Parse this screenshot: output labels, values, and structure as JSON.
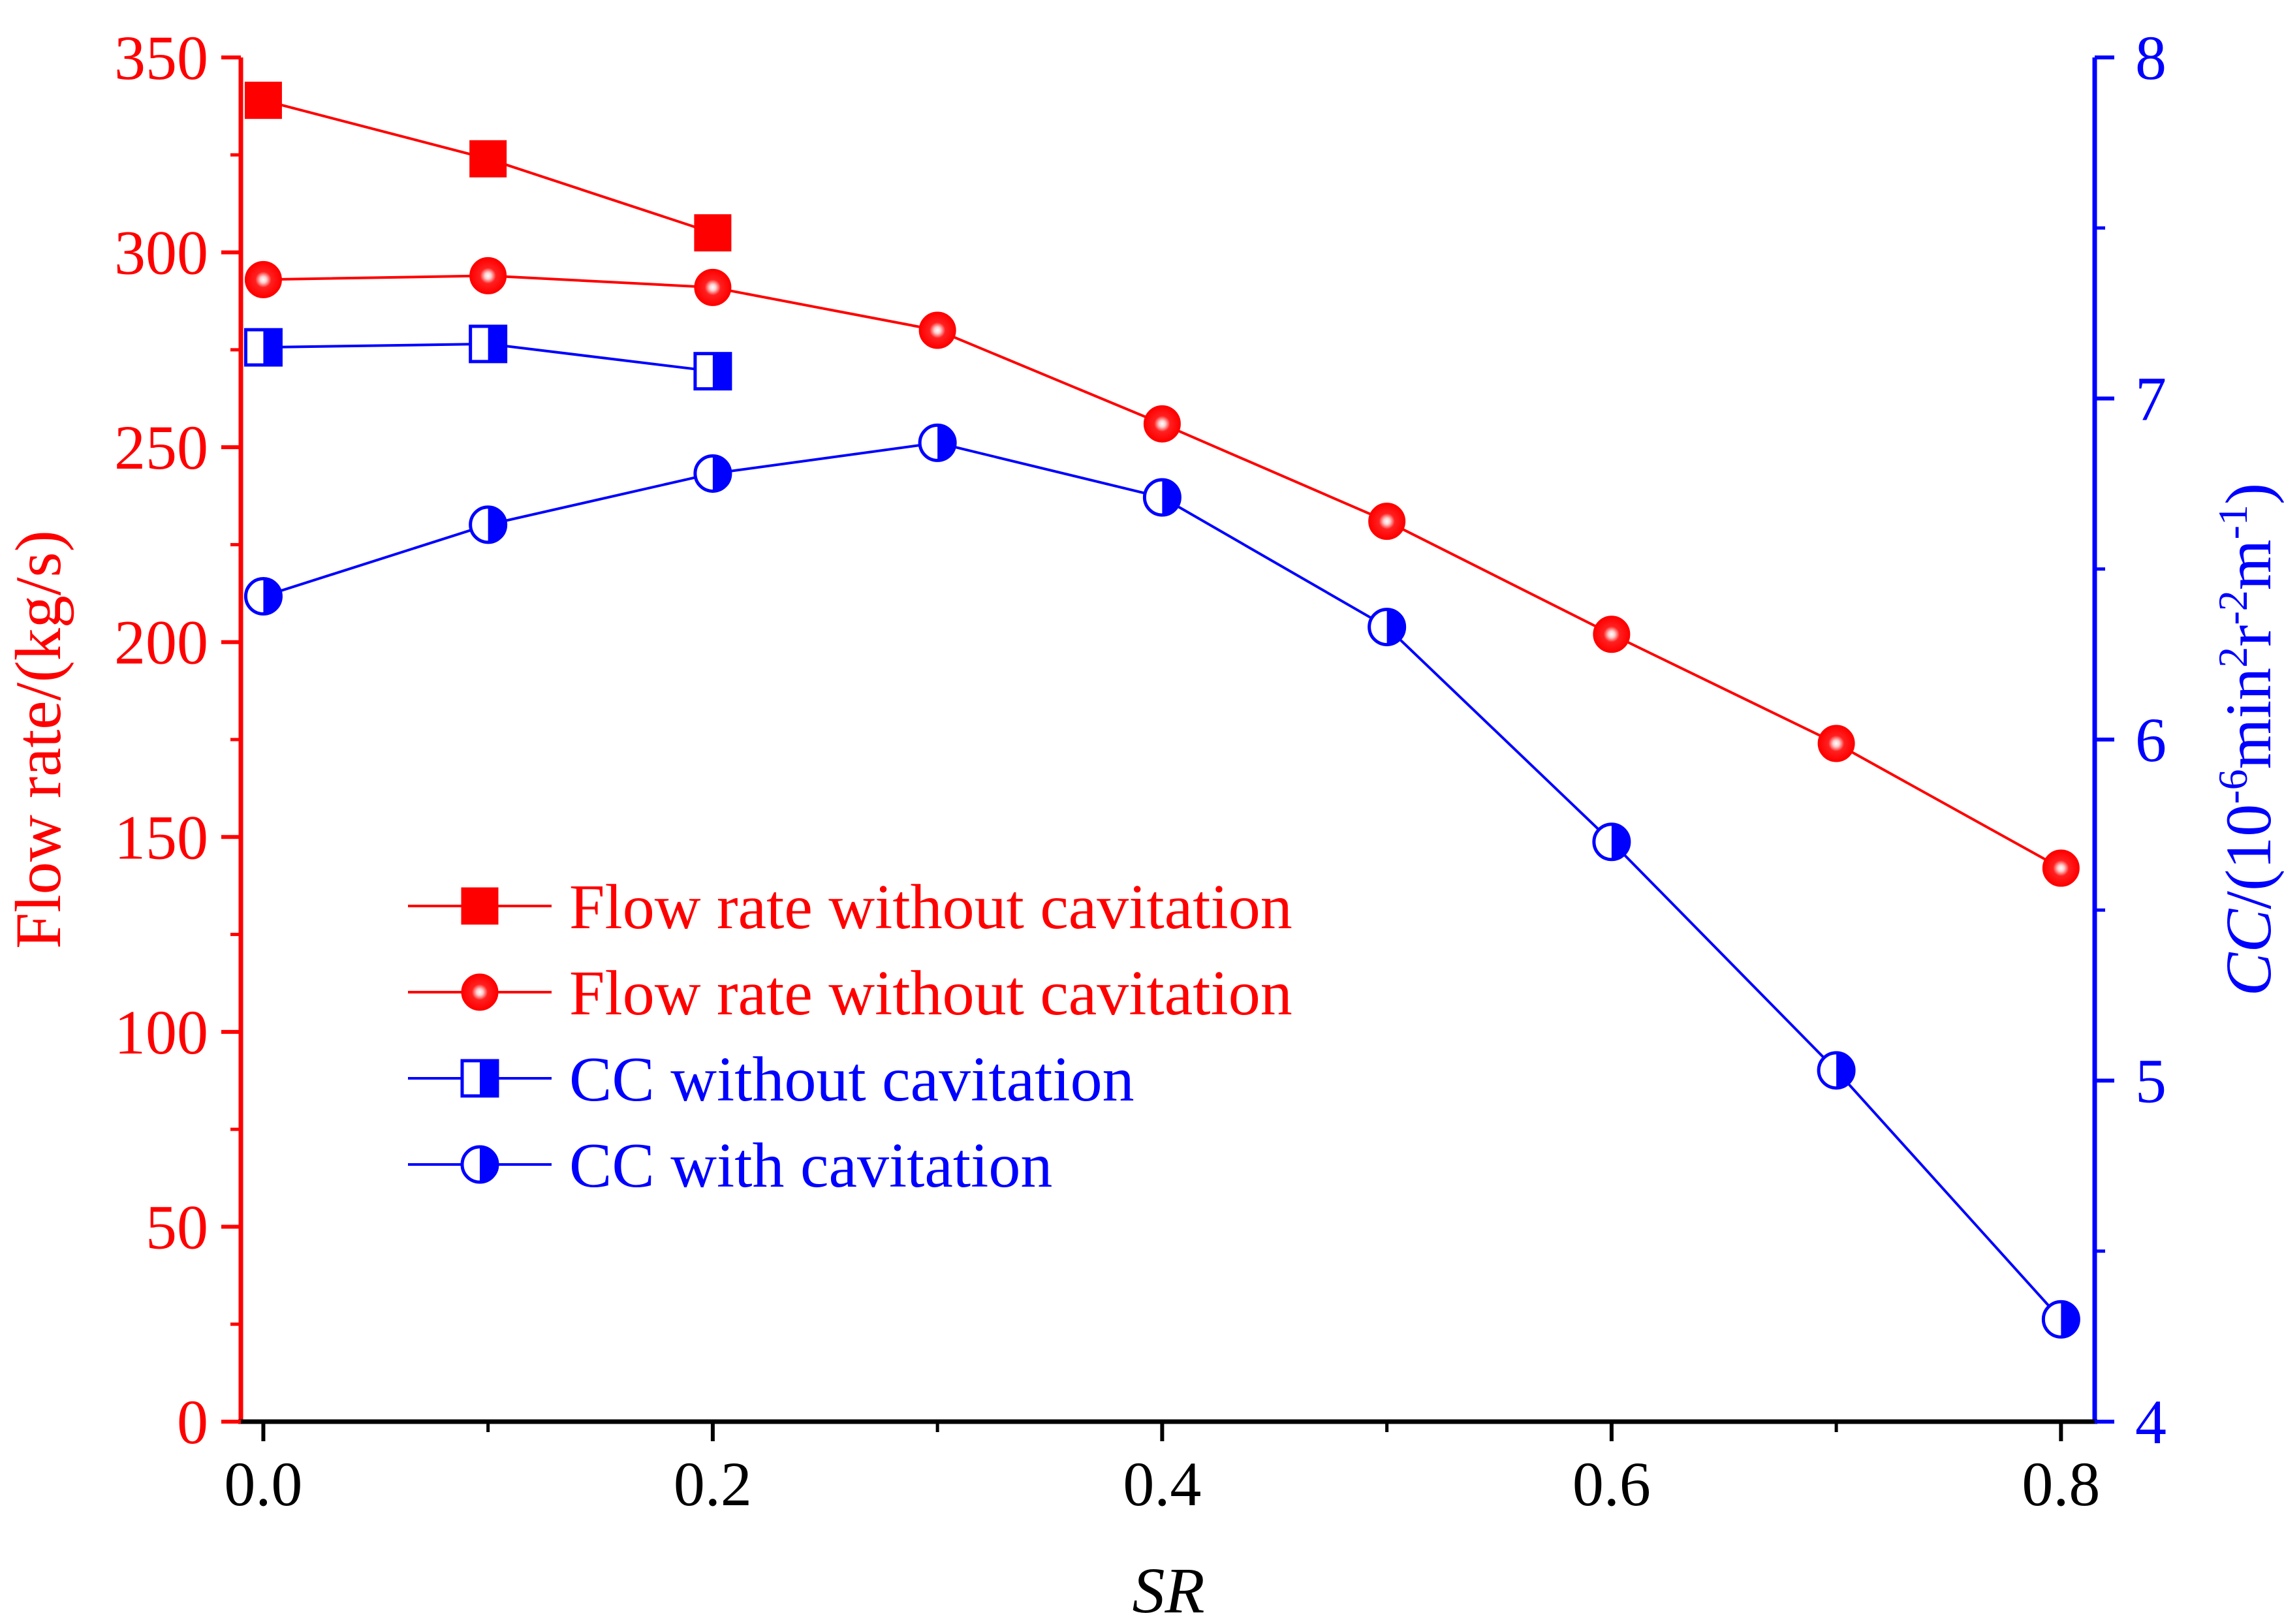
{
  "chart_data": {
    "type": "line",
    "xlabel": "SR",
    "x": [
      0.0,
      0.1,
      0.2,
      0.3,
      0.4,
      0.5,
      0.6,
      0.7,
      0.8
    ],
    "xlim": [
      -0.01,
      0.815
    ],
    "x_ticks": [
      0.0,
      0.2,
      0.4,
      0.6,
      0.8
    ],
    "x_tick_labels": [
      "0.0",
      "0.2",
      "0.4",
      "0.6",
      "0.8"
    ],
    "left_axis": {
      "label": "Flow rate/(kg/s)",
      "color": "#ff0000",
      "ylim": [
        0,
        350
      ],
      "ticks": [
        0,
        50,
        100,
        150,
        200,
        250,
        300,
        350
      ],
      "tick_labels": [
        "0",
        "50",
        "100",
        "150",
        "200",
        "250",
        "300",
        "350"
      ]
    },
    "right_axis": {
      "label_prefix": "CC",
      "label_main": "/(10",
      "label_exp1": "-6",
      "label_mid1": "min",
      "label_exp2": "2",
      "label_mid2": "r",
      "label_exp3": "-2",
      "label_mid3": "m",
      "label_exp4": "-1",
      "label_suffix": ")",
      "color": "#0000ff",
      "ylim": [
        4,
        8
      ],
      "ticks": [
        4,
        5,
        6,
        7,
        8
      ],
      "tick_labels": [
        "4",
        "5",
        "6",
        "7",
        "8"
      ]
    },
    "legend_position": "center-left",
    "series": [
      {
        "name": "Flow rate without cavitation",
        "axis": "left",
        "color": "#ff0000",
        "marker": "square-filled",
        "values": [
          339,
          324,
          305,
          null,
          null,
          null,
          null,
          null,
          null
        ]
      },
      {
        "name": "Flow rate without cavitation",
        "axis": "left",
        "color": "#ff0000",
        "marker": "sphere",
        "values": [
          293,
          294,
          291,
          280,
          256,
          231,
          202,
          174,
          142
        ]
      },
      {
        "name": "CC without cavitation",
        "axis": "right",
        "color": "#0000ff",
        "marker": "square-half",
        "values": [
          7.15,
          7.16,
          7.08,
          null,
          null,
          null,
          null,
          null,
          null
        ]
      },
      {
        "name": "CC with cavitation",
        "axis": "right",
        "color": "#0000ff",
        "marker": "circle-half",
        "values": [
          6.42,
          6.63,
          6.78,
          6.87,
          6.71,
          6.33,
          5.7,
          5.03,
          4.3
        ]
      }
    ]
  }
}
